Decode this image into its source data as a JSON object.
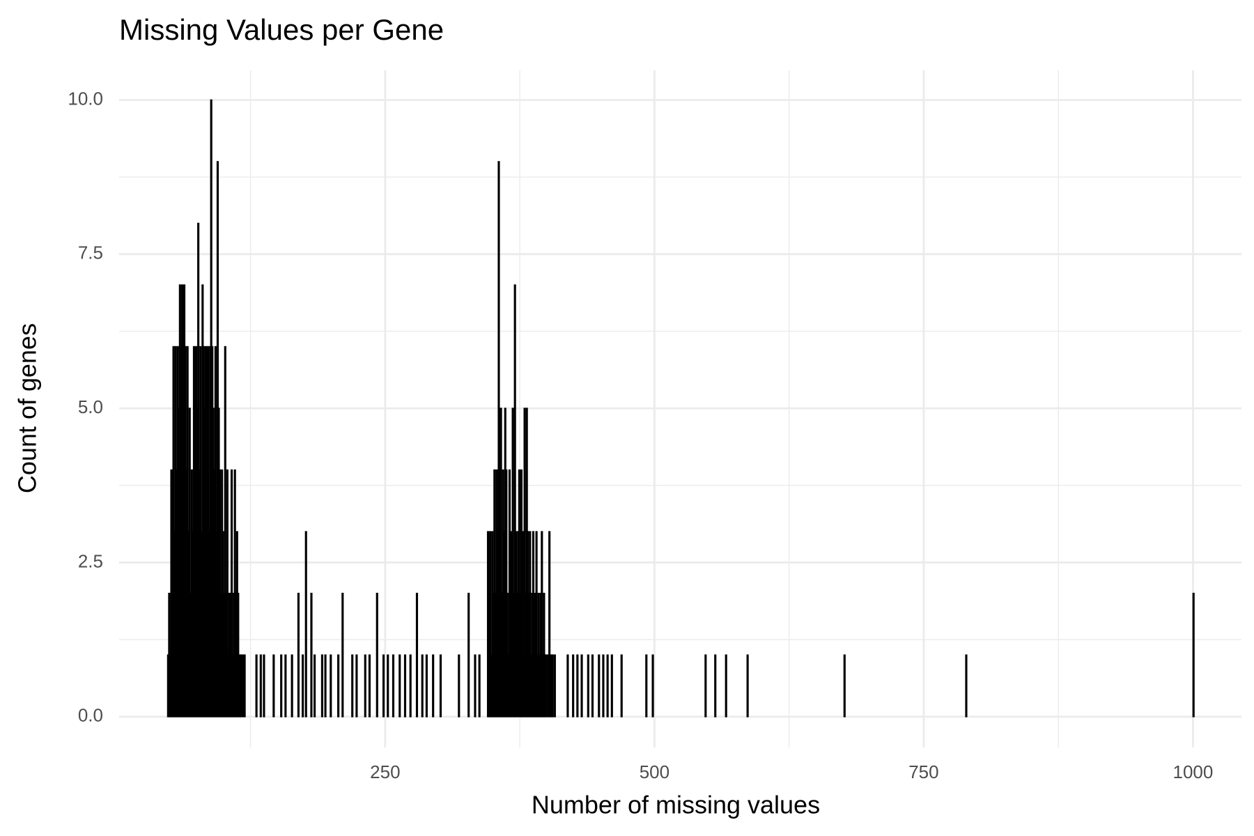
{
  "chart_data": {
    "type": "histogram",
    "title": "Missing Values per Gene",
    "x_label": "Number of missing values",
    "y_label": "Count of genes",
    "color": "#000000",
    "grid": true,
    "xlim": [
      3,
      1045
    ],
    "ylim": [
      -0.5,
      10.48
    ],
    "xticks": [
      250,
      500,
      750,
      1000
    ],
    "yticks": [
      {
        "value": 0,
        "label": "0.0"
      },
      {
        "value": 2.5,
        "label": "2.5"
      },
      {
        "value": 5,
        "label": "5.0"
      },
      {
        "value": 7.5,
        "label": "7.5"
      },
      {
        "value": 10,
        "label": "10.0"
      }
    ],
    "xminor": [
      125,
      375,
      625,
      875
    ],
    "yminor": [
      1.25,
      3.75,
      6.25,
      8.75
    ],
    "bins": [
      48,
      49,
      50,
      51,
      52,
      53,
      54,
      55,
      56,
      57,
      58,
      59,
      60,
      61,
      62,
      63,
      64,
      65,
      66,
      67,
      68,
      69,
      70,
      71,
      72,
      73,
      74,
      75,
      76,
      77,
      78,
      79,
      80,
      81,
      82,
      83,
      84,
      85,
      86,
      87,
      88,
      89,
      90,
      91,
      92,
      93,
      94,
      95,
      96,
      97,
      98,
      99,
      100,
      101,
      102,
      103,
      104,
      105,
      106,
      107,
      108,
      109,
      110,
      111,
      112,
      113,
      114,
      115,
      116,
      117,
      118,
      119,
      120,
      130,
      131,
      134,
      135,
      137,
      138,
      146,
      147,
      153,
      154,
      157,
      158,
      163,
      164,
      169,
      170,
      173,
      174,
      176,
      177,
      181,
      182,
      184,
      185,
      191,
      192,
      194,
      195,
      199,
      200,
      206,
      207,
      210,
      211,
      219,
      220,
      223,
      224,
      231,
      232,
      235,
      236,
      242,
      243,
      248,
      249,
      252,
      253,
      257,
      258,
      263,
      264,
      268,
      269,
      273,
      274,
      279,
      280,
      284,
      285,
      288,
      289,
      294,
      295,
      301,
      302,
      318,
      319,
      327,
      328,
      333,
      334,
      337,
      338,
      345,
      346,
      347,
      348,
      349,
      350,
      351,
      352,
      353,
      354,
      355,
      356,
      357,
      358,
      359,
      360,
      361,
      362,
      363,
      364,
      365,
      366,
      367,
      368,
      369,
      370,
      371,
      372,
      373,
      374,
      375,
      376,
      377,
      378,
      379,
      380,
      381,
      382,
      383,
      384,
      385,
      386,
      387,
      388,
      389,
      390,
      391,
      392,
      393,
      394,
      395,
      396,
      397,
      398,
      399,
      400,
      401,
      402,
      403,
      404,
      405,
      406,
      407,
      408,
      419,
      420,
      424,
      425,
      428,
      429,
      432,
      433,
      438,
      439,
      442,
      443,
      448,
      449,
      452,
      453,
      456,
      457,
      460,
      461,
      469,
      470,
      492,
      493,
      498,
      499,
      547,
      548,
      556,
      557,
      566,
      567,
      586,
      587,
      676,
      677,
      789,
      790,
      1000,
      1001
    ],
    "counts": [
      1,
      2,
      1,
      4,
      2,
      6,
      3,
      6,
      4,
      6,
      5,
      7,
      6,
      7,
      5,
      7,
      6,
      4,
      6,
      3,
      5,
      2,
      4,
      3,
      6,
      4,
      6,
      5,
      8,
      4,
      6,
      3,
      7,
      6,
      5,
      6,
      4,
      6,
      3,
      6,
      10,
      6,
      5,
      4,
      6,
      3,
      9,
      5,
      4,
      2,
      4,
      3,
      2,
      6,
      2,
      4,
      1,
      2,
      2,
      4,
      1,
      2,
      4,
      2,
      3,
      2,
      1,
      1,
      1,
      0,
      1,
      1,
      0,
      1,
      0,
      1,
      0,
      1,
      0,
      1,
      0,
      1,
      0,
      1,
      0,
      1,
      0,
      2,
      0,
      1,
      0,
      3,
      0,
      2,
      0,
      1,
      0,
      1,
      0,
      1,
      0,
      1,
      0,
      1,
      0,
      2,
      0,
      1,
      0,
      1,
      0,
      1,
      0,
      1,
      0,
      2,
      0,
      1,
      0,
      1,
      0,
      1,
      0,
      1,
      0,
      1,
      0,
      1,
      0,
      2,
      0,
      1,
      0,
      1,
      0,
      1,
      0,
      1,
      0,
      1,
      0,
      2,
      0,
      1,
      0,
      1,
      0,
      3,
      2,
      3,
      1,
      3,
      2,
      4,
      2,
      4,
      3,
      9,
      4,
      5,
      2,
      4,
      3,
      5,
      4,
      2,
      1,
      4,
      2,
      3,
      5,
      2,
      7,
      3,
      2,
      3,
      4,
      2,
      4,
      3,
      1,
      5,
      2,
      5,
      3,
      2,
      3,
      1,
      2,
      3,
      1,
      2,
      3,
      1,
      2,
      1,
      2,
      3,
      1,
      2,
      1,
      1,
      0,
      1,
      3,
      1,
      1,
      1,
      0,
      1,
      0,
      1,
      0,
      1,
      0,
      1,
      0,
      1,
      0,
      1,
      0,
      1,
      0,
      1,
      0,
      1,
      0,
      1,
      0,
      1,
      0,
      1,
      0,
      1,
      0,
      1,
      0,
      1,
      0,
      1,
      0,
      1,
      0,
      1,
      0,
      1,
      0,
      1,
      0,
      2
    ]
  }
}
